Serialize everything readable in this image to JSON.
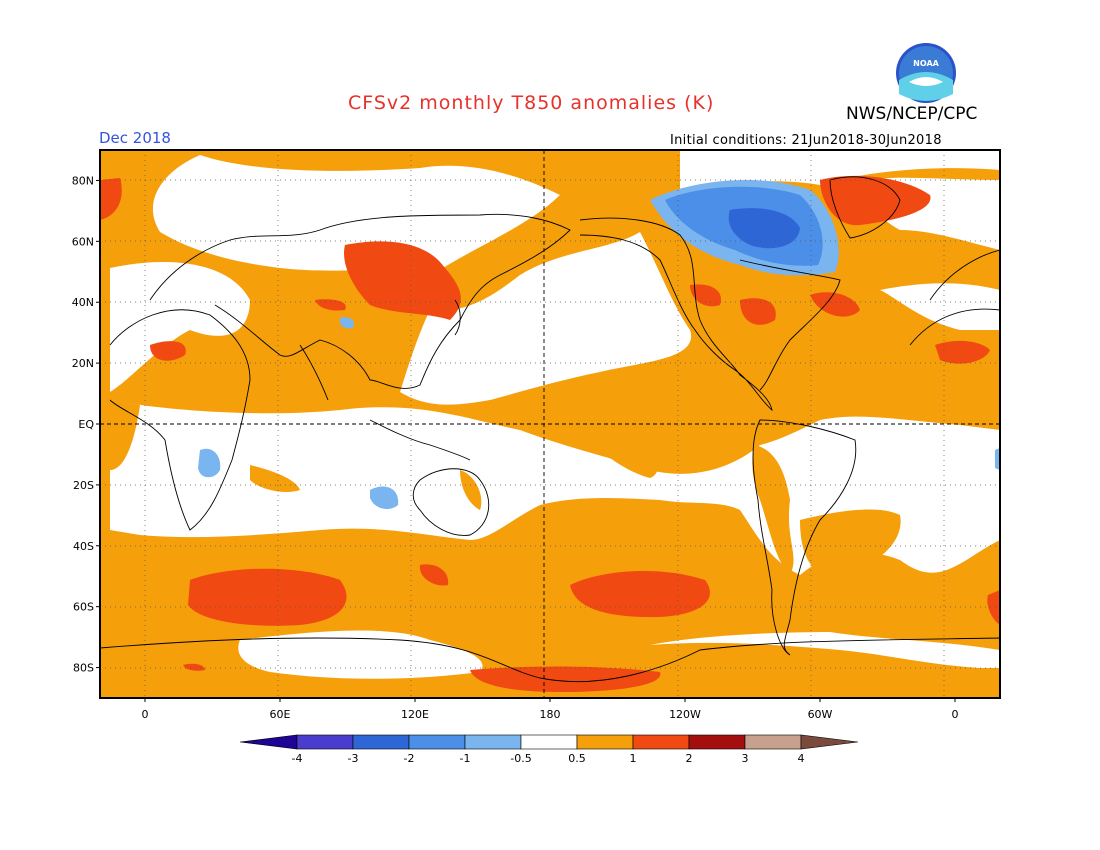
{
  "header": {
    "title": "CFSv2 monthly T850 anomalies (K)",
    "agency": "NWS/NCEP/CPC",
    "valid_month": "Dec 2018",
    "initial_conditions": "Initial conditions: 21Jun2018-30Jun2018",
    "logo_text": "NOAA"
  },
  "map": {
    "lat_labels": [
      "80N",
      "60N",
      "40N",
      "20N",
      "EQ",
      "20S",
      "40S",
      "60S",
      "80S"
    ],
    "lat_values": [
      80,
      60,
      40,
      20,
      0,
      -20,
      -40,
      -60,
      -80
    ],
    "lon_labels": [
      "0",
      "60E",
      "120E",
      "180",
      "120W",
      "60W",
      "0"
    ],
    "lon_values": [
      0,
      60,
      120,
      180,
      240,
      300,
      360
    ],
    "lon_range": [
      -20,
      380
    ],
    "lat_range": [
      -90,
      90
    ]
  },
  "colorbar": {
    "labels": [
      "-4",
      "-3",
      "-2",
      "-1",
      "-0.5",
      "0.5",
      "1",
      "2",
      "3",
      "4"
    ],
    "colors": [
      "#1e0596",
      "#4a3ccc",
      "#2f66d6",
      "#4b8fe8",
      "#7ab5f0",
      "#ffffff",
      "#f59f0a",
      "#f04a12",
      "#a50e0e",
      "#c8a08e",
      "#7a4a3c"
    ]
  },
  "colors": {
    "orange": "#f59f0a",
    "red": "#f04a12",
    "blue_light": "#7ab5f0",
    "blue_mid": "#4b8fe8",
    "blue_dark": "#2f66d6"
  }
}
